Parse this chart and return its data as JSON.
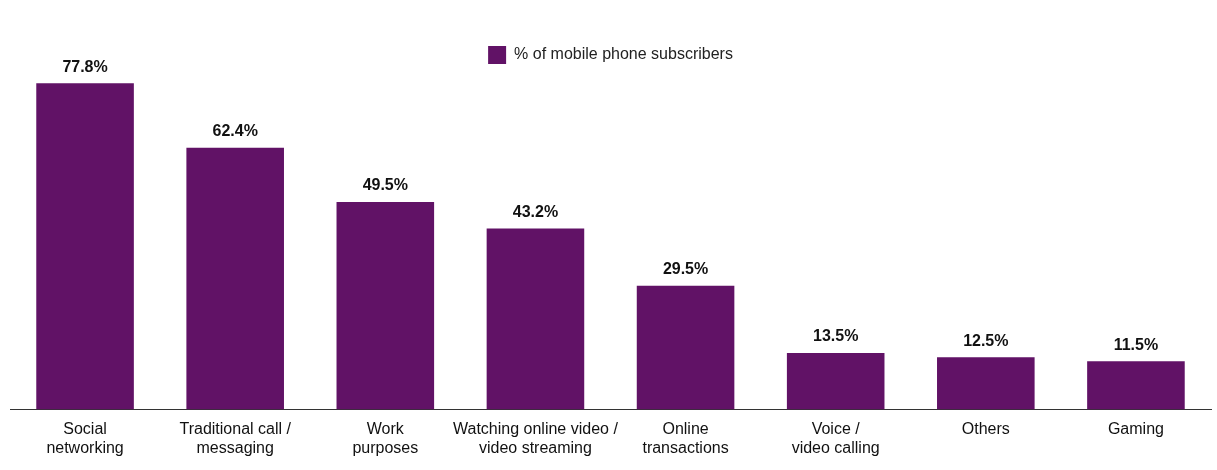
{
  "chart_data": {
    "type": "bar",
    "categories": [
      "Social\nnetworking",
      "Traditional call /\nmessaging",
      "Work\npurposes",
      "Watching online video /\nvideo streaming",
      "Online\ntransactions",
      "Voice /\nvideo calling",
      "Others",
      "Gaming"
    ],
    "series": [
      {
        "name": "% of mobile phone subscribers",
        "color": "#611266",
        "values": [
          77.8,
          62.4,
          49.5,
          43.2,
          29.5,
          13.5,
          12.5,
          11.5
        ],
        "value_labels": [
          "77.8%",
          "62.4%",
          "49.5%",
          "43.2%",
          "29.5%",
          "13.5%",
          "12.5%",
          "11.5%"
        ]
      }
    ],
    "legend": "top",
    "grid": false
  }
}
